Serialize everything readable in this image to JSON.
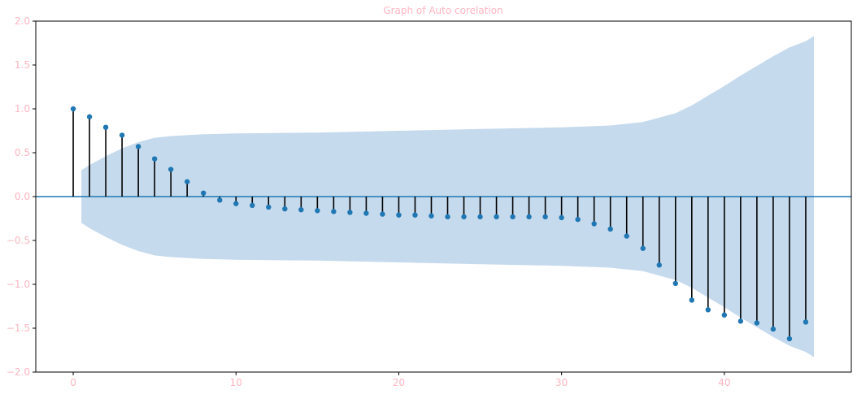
{
  "chart_data": {
    "type": "stem",
    "title": "Graph of Auto corelation",
    "xlabel": "",
    "ylabel": "",
    "xlim": [
      -2.3,
      47.8
    ],
    "ylim": [
      -2.0,
      2.0
    ],
    "x_ticks": [
      0,
      10,
      20,
      30,
      40
    ],
    "y_ticks": [
      -2.0,
      -1.5,
      -1.0,
      -0.5,
      0.0,
      0.5,
      1.0,
      1.5,
      2.0
    ],
    "y_tick_labels": [
      "−2.0",
      "−1.5",
      "−1.0",
      "−0.5",
      "0.0",
      "0.5",
      "1.0",
      "1.5",
      "2.0"
    ],
    "grid": false,
    "colors": {
      "tick_label": "#ffb6c1",
      "title": "#ffb6c1",
      "marker": "#1f77b4",
      "stem": "#000000",
      "confidence_band": "#c5daed",
      "zero_line": "#1f77b4",
      "axes": "#000000"
    },
    "lags": [
      0,
      1,
      2,
      3,
      4,
      5,
      6,
      7,
      8,
      9,
      10,
      11,
      12,
      13,
      14,
      15,
      16,
      17,
      18,
      19,
      20,
      21,
      22,
      23,
      24,
      25,
      26,
      27,
      28,
      29,
      30,
      31,
      32,
      33,
      34,
      35,
      36,
      37,
      38,
      39,
      40,
      41,
      42,
      43,
      44,
      45
    ],
    "values": [
      1.0,
      0.91,
      0.79,
      0.7,
      0.57,
      0.43,
      0.31,
      0.17,
      0.04,
      -0.04,
      -0.08,
      -0.1,
      -0.12,
      -0.14,
      -0.15,
      -0.16,
      -0.17,
      -0.18,
      -0.19,
      -0.2,
      -0.21,
      -0.21,
      -0.22,
      -0.23,
      -0.23,
      -0.23,
      -0.23,
      -0.23,
      -0.23,
      -0.23,
      -0.24,
      -0.26,
      -0.31,
      -0.37,
      -0.45,
      -0.59,
      -0.78,
      -0.99,
      -1.18,
      -1.29,
      -1.35,
      -1.42,
      -1.44,
      -1.51,
      -1.62,
      -1.43
    ],
    "confidence_band": {
      "x": [
        0.5,
        1,
        2,
        3,
        4,
        5,
        6,
        8,
        10,
        15,
        20,
        25,
        30,
        33,
        35,
        36,
        37,
        38,
        39,
        40,
        41,
        42,
        43,
        44,
        45,
        45.5
      ],
      "upper": [
        0.3,
        0.36,
        0.46,
        0.55,
        0.62,
        0.67,
        0.69,
        0.71,
        0.72,
        0.73,
        0.75,
        0.77,
        0.79,
        0.81,
        0.85,
        0.9,
        0.95,
        1.04,
        1.15,
        1.26,
        1.38,
        1.49,
        1.6,
        1.7,
        1.77,
        1.83
      ],
      "lower": [
        -0.3,
        -0.36,
        -0.46,
        -0.55,
        -0.62,
        -0.67,
        -0.69,
        -0.71,
        -0.72,
        -0.73,
        -0.75,
        -0.77,
        -0.79,
        -0.81,
        -0.85,
        -0.9,
        -0.95,
        -1.04,
        -1.15,
        -1.26,
        -1.38,
        -1.49,
        -1.6,
        -1.7,
        -1.77,
        -1.83
      ]
    }
  }
}
